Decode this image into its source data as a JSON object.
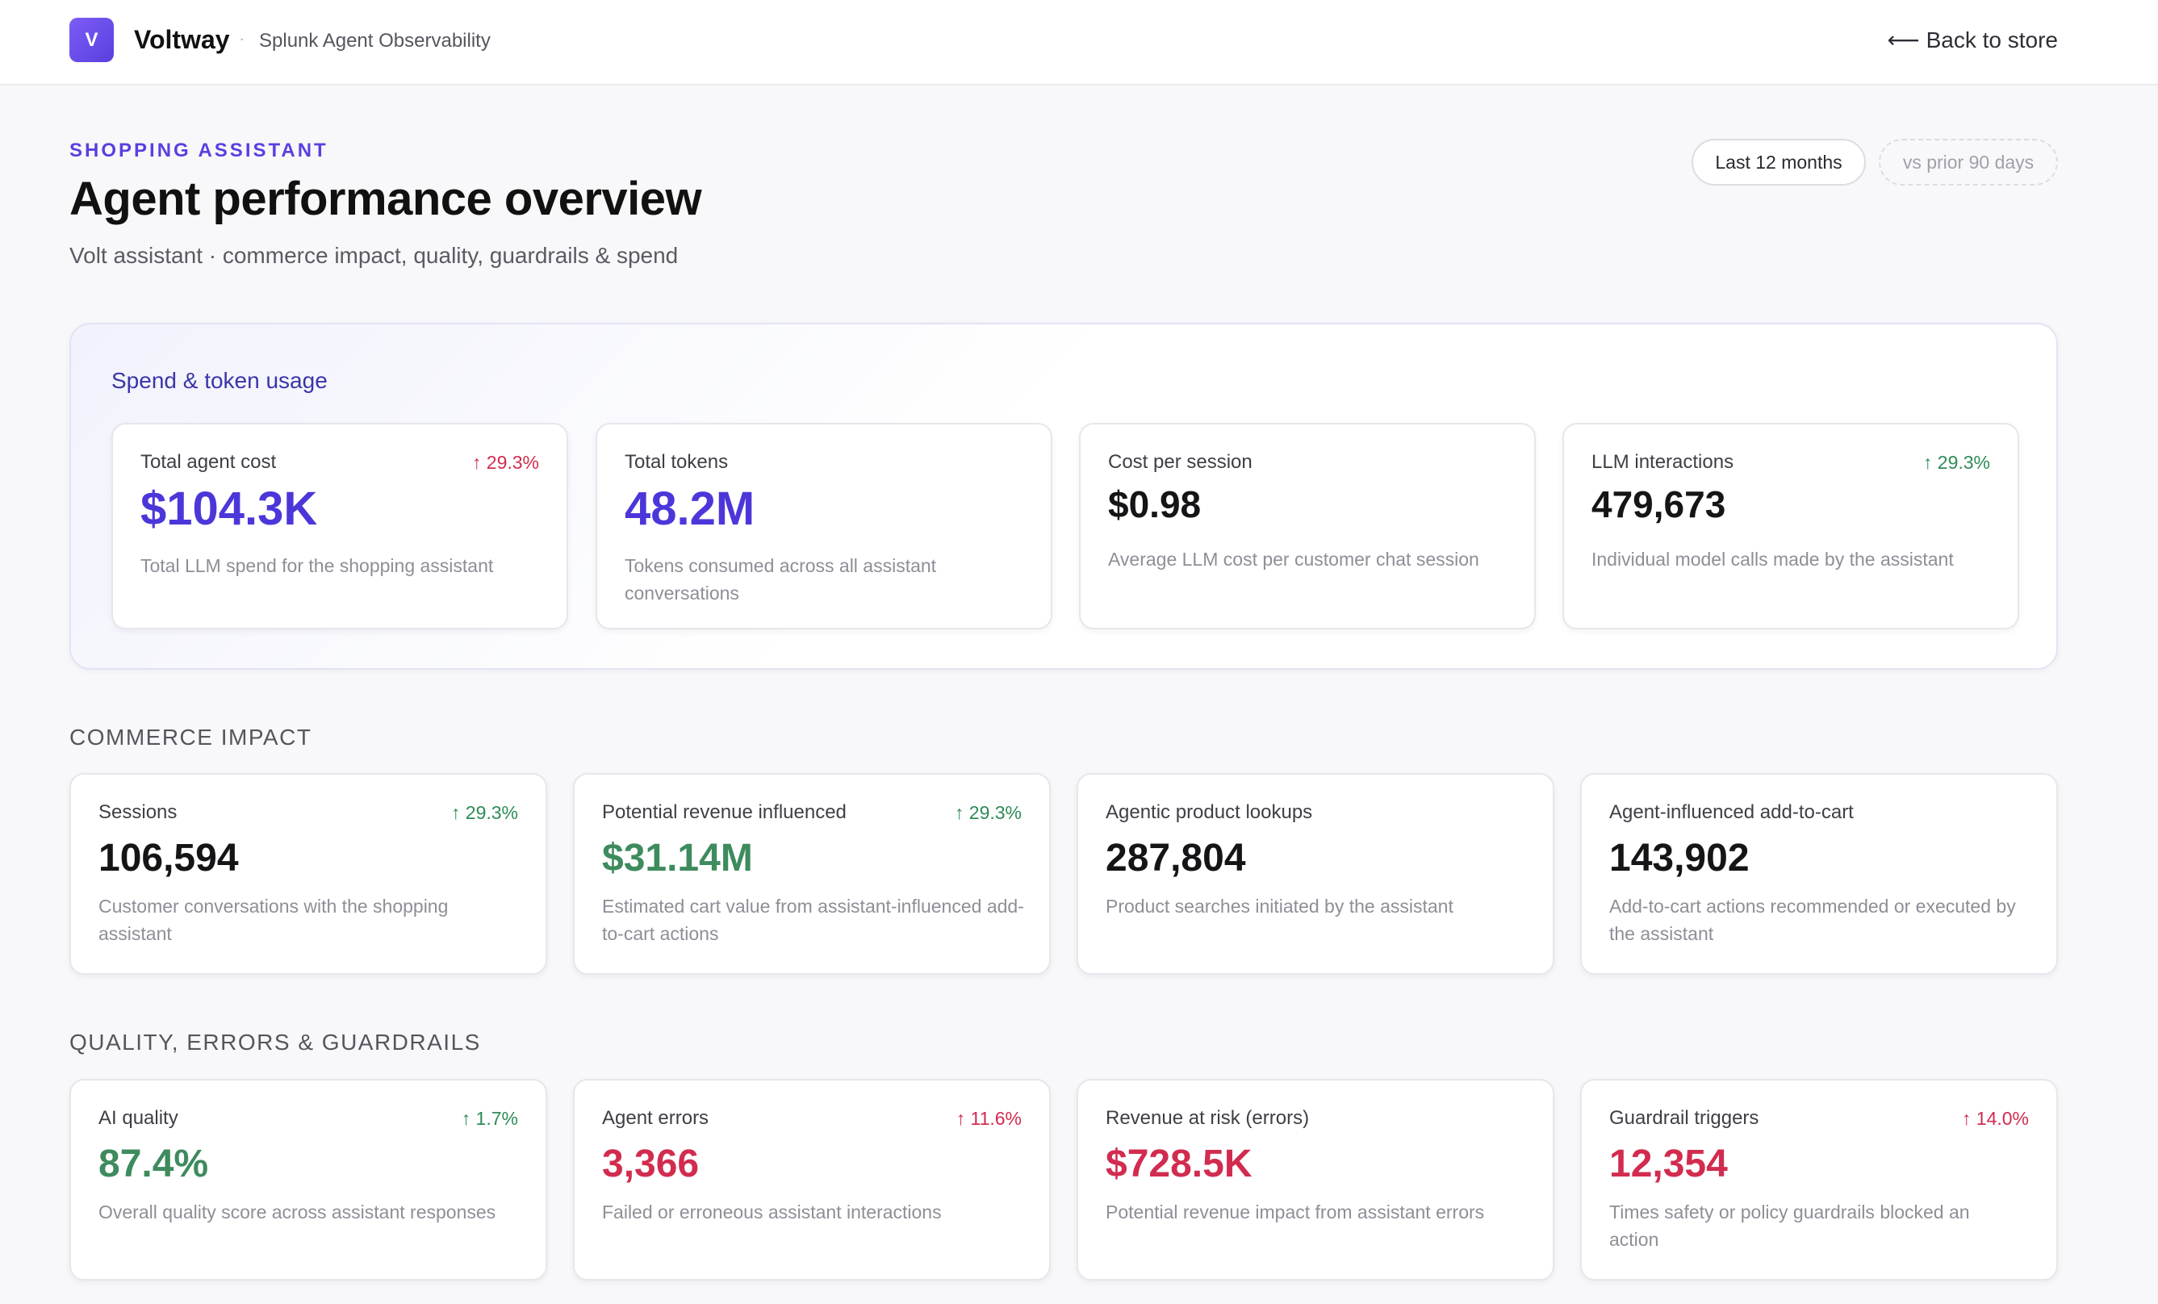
{
  "header": {
    "logo_letter": "V",
    "brand_name": "Voltway",
    "separator": "·",
    "brand_subtitle": "Splunk Agent Observability",
    "back_link": "Back to store",
    "back_icon": "arrow-left-icon"
  },
  "page": {
    "eyebrow": "SHOPPING ASSISTANT",
    "title": "Agent performance overview",
    "subtitle": "Volt assistant · commerce impact, quality, guardrails & spend",
    "period_label": "Last 12 months",
    "compare_label": "vs prior 90 days"
  },
  "colors": {
    "accent": "#5b3fe0",
    "positive": "#2e8b57",
    "negative": "#d12c4f"
  },
  "spend": {
    "title": "Spend & token usage",
    "cards": [
      {
        "label": "Total agent cost",
        "delta": "↑ 29.3%",
        "value": "$104.3K",
        "desc": "Total LLM spend for the shopping assistant"
      },
      {
        "label": "Total tokens",
        "delta": "",
        "value": "48.2M",
        "desc": "Tokens consumed across all assistant conversations"
      },
      {
        "label": "Cost per session",
        "delta": "",
        "value": "$0.98",
        "desc": "Average LLM cost per customer chat session"
      },
      {
        "label": "LLM interactions",
        "delta": "↑ 29.3%",
        "value": "479,673",
        "desc": "Individual model calls made by the assistant"
      }
    ]
  },
  "commerce": {
    "title": "COMMERCE IMPACT",
    "cards": [
      {
        "label": "Sessions",
        "delta": "↑ 29.3%",
        "value": "106,594",
        "desc": "Customer conversations with the shopping assistant"
      },
      {
        "label": "Potential revenue influenced",
        "delta": "↑ 29.3%",
        "value": "$31.14M",
        "desc": "Estimated cart value from assistant-influenced add-to-cart actions"
      },
      {
        "label": "Agentic product lookups",
        "delta": "",
        "value": "287,804",
        "desc": "Product searches initiated by the assistant"
      },
      {
        "label": "Agent-influenced add-to-cart",
        "delta": "",
        "value": "143,902",
        "desc": "Add-to-cart actions recommended or executed by the assistant"
      }
    ]
  },
  "quality": {
    "title": "QUALITY, ERRORS & GUARDRAILS",
    "cards": [
      {
        "label": "AI quality",
        "delta": "↑ 1.7%",
        "value": "87.4%",
        "desc": "Overall quality score across assistant responses"
      },
      {
        "label": "Agent errors",
        "delta": "↑ 11.6%",
        "value": "3,366",
        "desc": "Failed or erroneous assistant interactions"
      },
      {
        "label": "Revenue at risk (errors)",
        "delta": "",
        "value": "$728.5K",
        "desc": "Potential revenue impact from assistant errors"
      },
      {
        "label": "Guardrail triggers",
        "delta": "↑ 14.0%",
        "value": "12,354",
        "desc": "Times safety or policy guardrails blocked an action"
      }
    ]
  }
}
